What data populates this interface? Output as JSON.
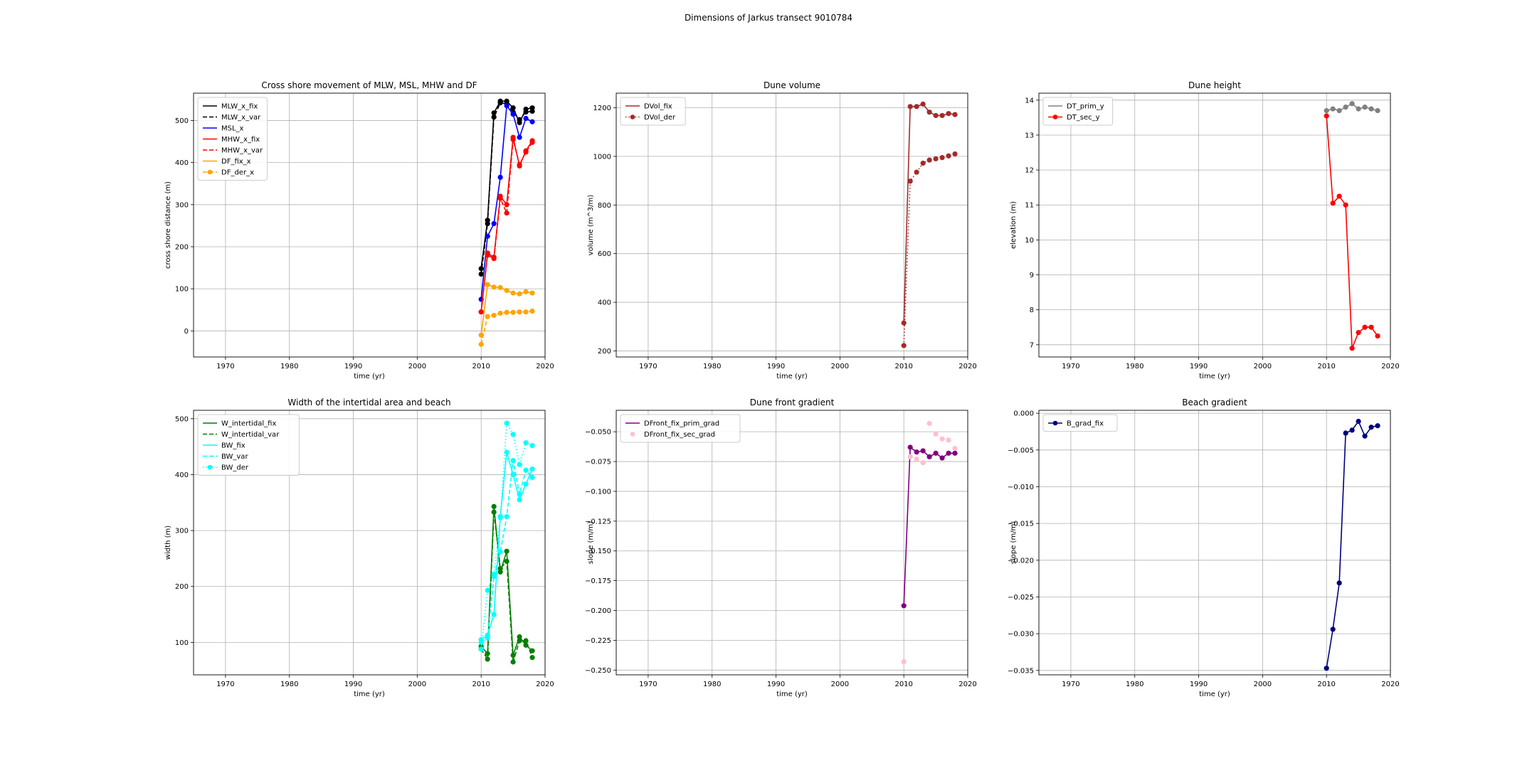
{
  "suptitle": "Dimensions of Jarkus transect 9010784",
  "chart_data": [
    {
      "type": "line",
      "title": "Cross shore movement of MLW, MSL, MHW and DF",
      "xlabel": "time (yr)",
      "ylabel": "cross shore distance (m)",
      "xlim": [
        1965,
        2020
      ],
      "ylim": [
        -62,
        565
      ],
      "xticks": [
        1970,
        1980,
        1990,
        2000,
        2010,
        2020
      ],
      "yticks": [
        0,
        100,
        200,
        300,
        400,
        500
      ],
      "grid": true,
      "legend": "top-left",
      "x": [
        2010,
        2011,
        2012,
        2013,
        2014,
        2015,
        2016,
        2017,
        2018
      ],
      "series": [
        {
          "name": "MLW_x_fix",
          "color": "#000000",
          "dash": "solid",
          "marker": true,
          "values": [
            148,
            263,
            518,
            546,
            546,
            530,
            495,
            527,
            530
          ]
        },
        {
          "name": "MLW_x_var",
          "color": "#000000",
          "dash": "dashed",
          "marker": true,
          "values": [
            135,
            255,
            508,
            542,
            540,
            520,
            502,
            520,
            522
          ]
        },
        {
          "name": "MSL_x",
          "color": "#0000ff",
          "dash": "solid",
          "marker": true,
          "values": [
            75,
            225,
            255,
            365,
            535,
            515,
            460,
            505,
            497
          ]
        },
        {
          "name": "MHW_x_fix",
          "color": "#ff0000",
          "dash": "solid",
          "marker": true,
          "values": [
            45,
            185,
            175,
            320,
            300,
            460,
            392,
            428,
            452
          ]
        },
        {
          "name": "MHW_x_var",
          "color": "#ff0000",
          "dash": "dashed",
          "marker": true,
          "values": [
            45,
            180,
            172,
            315,
            280,
            455,
            395,
            425,
            448
          ]
        },
        {
          "name": "DF_fix_x",
          "color": "#ffa500",
          "dash": "solid",
          "marker": true,
          "values": [
            -10,
            110,
            104,
            103,
            96,
            90,
            88,
            93,
            90
          ]
        },
        {
          "name": "DF_der_x",
          "color": "#ffa500",
          "dash": "dashed",
          "marker": true,
          "values": [
            -32,
            34,
            37,
            42,
            44,
            44,
            45,
            45,
            47
          ]
        }
      ]
    },
    {
      "type": "line",
      "title": "Dune volume",
      "xlabel": "time (yr)",
      "ylabel": "volume (m^3/m)",
      "xlim": [
        1965,
        2020
      ],
      "ylim": [
        175,
        1260
      ],
      "xticks": [
        1970,
        1980,
        1990,
        2000,
        2010,
        2020
      ],
      "yticks": [
        200,
        400,
        600,
        800,
        1000,
        1200
      ],
      "grid": true,
      "legend": "top-left",
      "x": [
        2010,
        2011,
        2012,
        2013,
        2014,
        2015,
        2016,
        2017,
        2018
      ],
      "series": [
        {
          "name": "DVol_fix",
          "color": "#a52a2a",
          "dash": "solid",
          "marker": true,
          "values": [
            315,
            1205,
            1205,
            1215,
            1182,
            1168,
            1168,
            1176,
            1172
          ]
        },
        {
          "name": "DVol_der",
          "color": "#a52a2a",
          "dash": "dotted",
          "marker": true,
          "values": [
            222,
            898,
            935,
            972,
            985,
            990,
            995,
            1002,
            1010
          ]
        }
      ]
    },
    {
      "type": "line",
      "title": "Dune height",
      "xlabel": "time (yr)",
      "ylabel": "elevation (m)",
      "xlim": [
        1965,
        2020
      ],
      "ylim": [
        6.65,
        14.2
      ],
      "xticks": [
        1970,
        1980,
        1990,
        2000,
        2010,
        2020
      ],
      "yticks": [
        7,
        8,
        9,
        10,
        11,
        12,
        13,
        14
      ],
      "grid": true,
      "legend": "top-left",
      "x": [
        2010,
        2011,
        2012,
        2013,
        2014,
        2015,
        2016,
        2017,
        2018
      ],
      "series": [
        {
          "name": "DT_prim_y",
          "color": "#808080",
          "dash": "solid",
          "marker": true,
          "values": [
            13.7,
            13.75,
            13.7,
            13.8,
            13.9,
            13.75,
            13.8,
            13.75,
            13.7
          ]
        },
        {
          "name": "DT_sec_y",
          "color": "#ff0000",
          "dash": "solid",
          "marker": true,
          "values": [
            13.55,
            11.05,
            11.25,
            11.0,
            6.9,
            7.35,
            7.5,
            7.5,
            7.25
          ]
        }
      ]
    },
    {
      "type": "line",
      "title": "Width of the intertidal area and beach",
      "xlabel": "time (yr)",
      "ylabel": "width (m)",
      "xlim": [
        1965,
        2020
      ],
      "ylim": [
        42,
        515
      ],
      "xticks": [
        1970,
        1980,
        1990,
        2000,
        2010,
        2020
      ],
      "yticks": [
        100,
        200,
        300,
        400,
        500
      ],
      "grid": true,
      "legend": "top-left",
      "x": [
        2010,
        2011,
        2012,
        2013,
        2014,
        2015,
        2016,
        2017,
        2018
      ],
      "series": [
        {
          "name": "W_intertidal_fix",
          "color": "#008000",
          "dash": "solid",
          "marker": true,
          "values": [
            93,
            80,
            343,
            226,
            263,
            77,
            110,
            95,
            85
          ]
        },
        {
          "name": "W_intertidal_var",
          "color": "#008000",
          "dash": "dashed",
          "marker": true,
          "values": [
            88,
            70,
            333,
            232,
            245,
            65,
            103,
            103,
            73
          ]
        },
        {
          "name": "BW_fix",
          "color": "#00ffff",
          "dash": "solid",
          "marker": true,
          "values": [
            105,
            113,
            150,
            325,
            440,
            400,
            355,
            383,
            410
          ]
        },
        {
          "name": "BW_var",
          "color": "#00ffff",
          "dash": "dashed",
          "marker": true,
          "values": [
            100,
            108,
            218,
            262,
            325,
            425,
            365,
            408,
            395
          ]
        },
        {
          "name": "BW_der",
          "color": "#00ffff",
          "dash": "dotted",
          "marker": true,
          "values": [
            88,
            193,
            222,
            323,
            492,
            472,
            418,
            457,
            452
          ]
        }
      ]
    },
    {
      "type": "line",
      "title": "Dune front gradient",
      "xlabel": "time (yr)",
      "ylabel": "slope (m/m)",
      "xlim": [
        1965,
        2020
      ],
      "ylim": [
        -0.254,
        -0.032
      ],
      "xticks": [
        1970,
        1980,
        1990,
        2000,
        2010,
        2020
      ],
      "yticks": [
        -0.25,
        -0.225,
        -0.2,
        -0.175,
        -0.15,
        -0.125,
        -0.1,
        -0.075,
        -0.05
      ],
      "ytick_labels": [
        "−0.250",
        "−0.225",
        "−0.200",
        "−0.175",
        "−0.150",
        "−0.125",
        "−0.100",
        "−0.075",
        "−0.050"
      ],
      "grid": true,
      "legend": "top-left",
      "x": [
        2010,
        2011,
        2012,
        2013,
        2014,
        2015,
        2016,
        2017,
        2018
      ],
      "series": [
        {
          "name": "DFront_fix_prim_grad",
          "color": "#800080",
          "dash": "solid",
          "marker": true,
          "values": [
            -0.196,
            -0.063,
            -0.067,
            -0.066,
            -0.071,
            -0.068,
            -0.072,
            -0.068,
            -0.068
          ]
        },
        {
          "name": "DFront_fix_sec_grad",
          "color": "#ffc0cb",
          "dash": "none",
          "marker": true,
          "values": [
            -0.243,
            -0.071,
            -0.073,
            -0.076,
            -0.043,
            -0.052,
            -0.056,
            -0.057,
            -0.064
          ]
        }
      ]
    },
    {
      "type": "line",
      "title": "Beach gradient",
      "xlabel": "time (yr)",
      "ylabel": "slope (m/m)",
      "xlim": [
        1965,
        2020
      ],
      "ylim": [
        -0.0356,
        0.0004
      ],
      "xticks": [
        1970,
        1980,
        1990,
        2000,
        2010,
        2020
      ],
      "yticks": [
        -0.035,
        -0.03,
        -0.025,
        -0.02,
        -0.015,
        -0.01,
        -0.005,
        0
      ],
      "ytick_labels": [
        "−0.035",
        "−0.030",
        "−0.025",
        "−0.020",
        "−0.015",
        "−0.010",
        "−0.005",
        "0.000"
      ],
      "grid": true,
      "legend": "top-left",
      "x": [
        2010,
        2011,
        2012,
        2013,
        2014,
        2015,
        2016,
        2017,
        2018
      ],
      "series": [
        {
          "name": "B_grad_fix",
          "color": "#000080",
          "dash": "solid",
          "marker": true,
          "values": [
            -0.0347,
            -0.0294,
            -0.0231,
            -0.0027,
            -0.0023,
            -0.0011,
            -0.0031,
            -0.0019,
            -0.0017
          ]
        }
      ]
    }
  ]
}
